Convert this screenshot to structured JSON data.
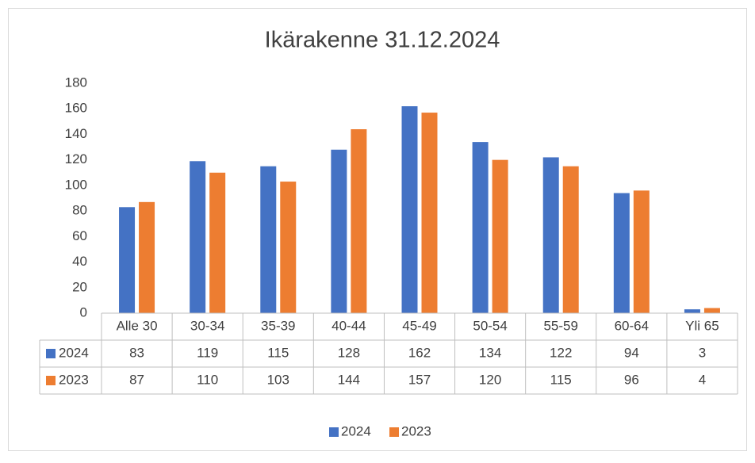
{
  "chart_data": {
    "type": "bar",
    "title": "Ikärakenne 31.12.2024",
    "categories": [
      "Alle 30",
      "30-34",
      "35-39",
      "40-44",
      "45-49",
      "50-54",
      "55-59",
      "60-64",
      "Yli 65"
    ],
    "series": [
      {
        "name": "2024",
        "color": "#4472c4",
        "values": [
          83,
          119,
          115,
          128,
          162,
          134,
          122,
          94,
          3
        ]
      },
      {
        "name": "2023",
        "color": "#ed7d31",
        "values": [
          87,
          110,
          103,
          144,
          157,
          120,
          115,
          96,
          4
        ]
      }
    ],
    "ylim": [
      0,
      180
    ],
    "yticks": [
      0,
      20,
      40,
      60,
      80,
      100,
      120,
      140,
      160,
      180
    ],
    "grid": false,
    "data_table": true,
    "legend": "bottom"
  }
}
